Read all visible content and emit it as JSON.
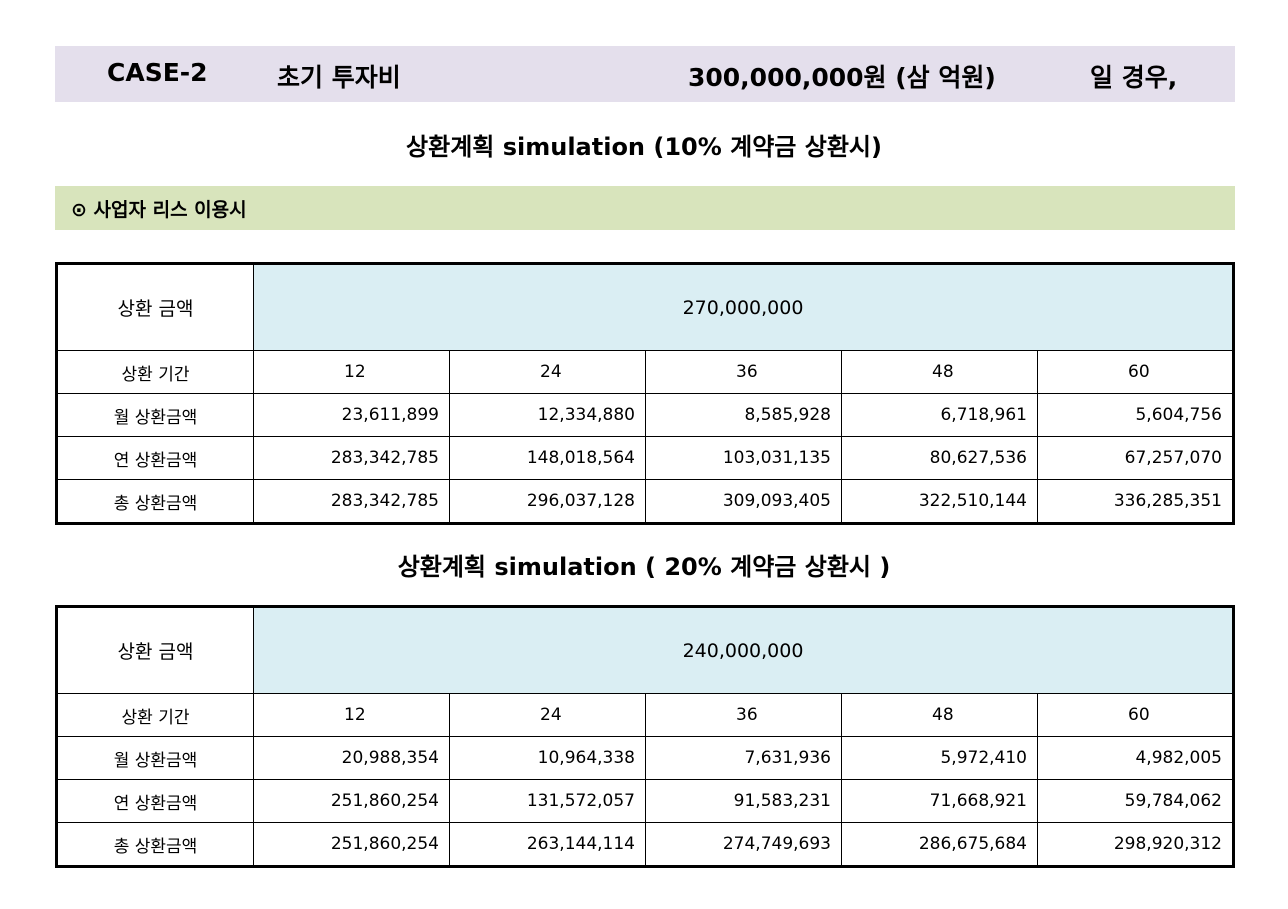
{
  "header": {
    "case": "CASE-2",
    "label": "초기 투자비",
    "amount": "300,000,000원 (삼 억원)",
    "suffix": "일 경우,"
  },
  "section": {
    "label": "⊙ 사업자 리스 이용시"
  },
  "colors": {
    "header_band": "#e4dfec",
    "section_band": "#d8e4bc",
    "amount_cell": "#daeef3"
  },
  "tables": [
    {
      "title": "상환계획 simulation (10% 계약금 상환시)",
      "amount_label": "상환 금액",
      "amount": "270,000,000",
      "period_label": "상환 기간",
      "periods": [
        "12",
        "24",
        "36",
        "48",
        "60"
      ],
      "rows": [
        {
          "label": "월 상환금액",
          "values": [
            "23,611,899",
            "12,334,880",
            "8,585,928",
            "6,718,961",
            "5,604,756"
          ]
        },
        {
          "label": "연 상환금액",
          "values": [
            "283,342,785",
            "148,018,564",
            "103,031,135",
            "80,627,536",
            "67,257,070"
          ]
        },
        {
          "label": "총 상환금액",
          "values": [
            "283,342,785",
            "296,037,128",
            "309,093,405",
            "322,510,144",
            "336,285,351"
          ]
        }
      ]
    },
    {
      "title": "상환계획 simulation ( 20% 계약금 상환시 )",
      "amount_label": "상환 금액",
      "amount": "240,000,000",
      "period_label": "상환 기간",
      "periods": [
        "12",
        "24",
        "36",
        "48",
        "60"
      ],
      "rows": [
        {
          "label": "월 상환금액",
          "values": [
            "20,988,354",
            "10,964,338",
            "7,631,936",
            "5,972,410",
            "4,982,005"
          ]
        },
        {
          "label": "연 상환금액",
          "values": [
            "251,860,254",
            "131,572,057",
            "91,583,231",
            "71,668,921",
            "59,784,062"
          ]
        },
        {
          "label": "총 상환금액",
          "values": [
            "251,860,254",
            "263,144,114",
            "274,749,693",
            "286,675,684",
            "298,920,312"
          ]
        }
      ]
    }
  ]
}
